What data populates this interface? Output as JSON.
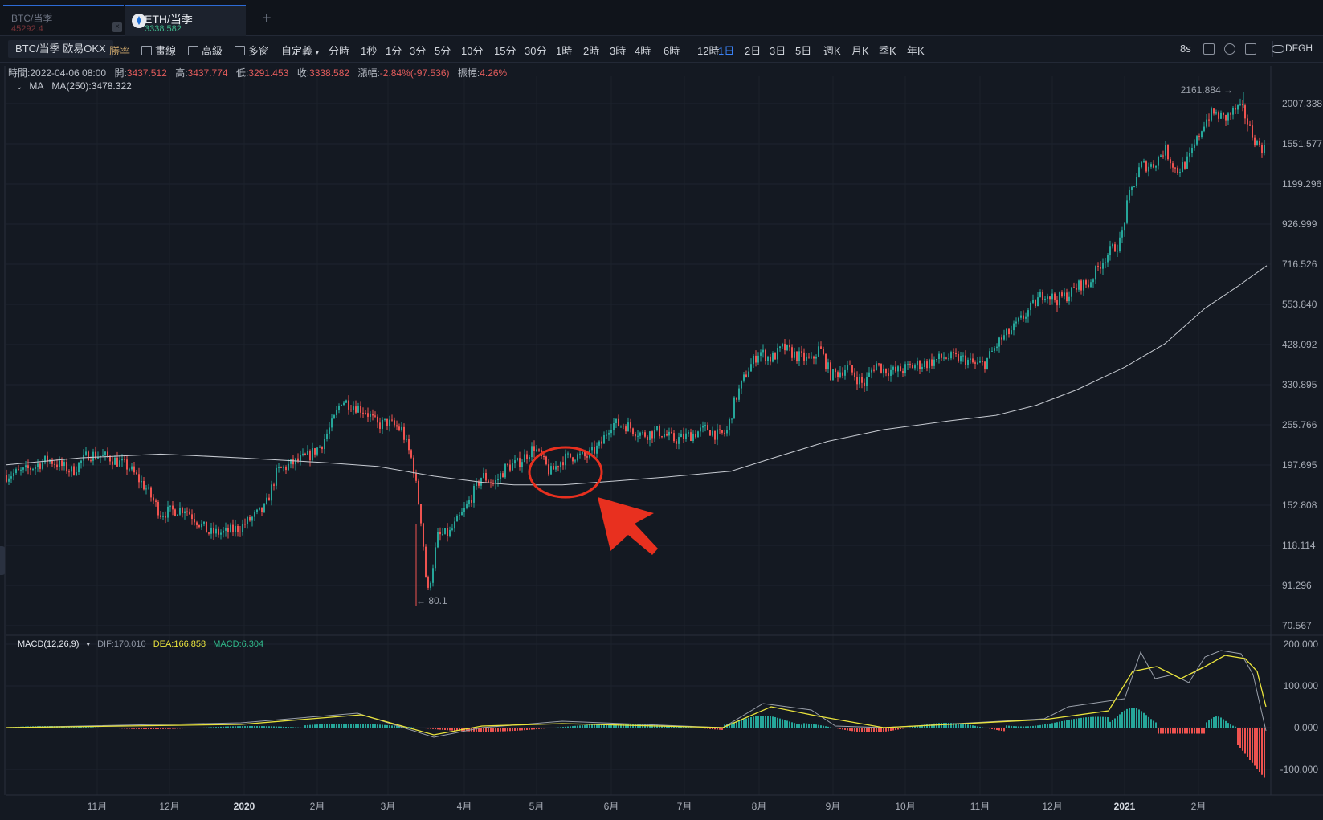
{
  "tabs": [
    {
      "name": "BTC/当季",
      "price": "45292.4"
    },
    {
      "name": "ETH/当季",
      "price": "3338.582"
    }
  ],
  "toolbar": {
    "symbol": "BTC/当季 欧易OKX",
    "win_rate": "勝率",
    "tools": [
      "畫線",
      "高級",
      "多窗",
      "自定義"
    ],
    "timeframes": [
      "分時",
      "1秒",
      "1分",
      "3分",
      "5分",
      "10分",
      "15分",
      "30分",
      "1時",
      "2時",
      "3時",
      "4時",
      "6時",
      "12時",
      "1日",
      "2日",
      "3日",
      "5日",
      "週K",
      "月K",
      "季K",
      "年K"
    ],
    "active_timeframe": "1日",
    "refresh": "8s",
    "account": "DFGH"
  },
  "info": {
    "time_label": "時間:",
    "time": "2022-04-06 08:00",
    "open_label": "開:",
    "open": "3437.512",
    "high_label": "高:",
    "high": "3437.774",
    "low_label": "低:",
    "low": "3291.453",
    "close_label": "收:",
    "close": "3338.582",
    "change_label": "漲幅:",
    "change": "-2.84%(-97.536)",
    "amp_label": "振幅:",
    "amp": "4.26%"
  },
  "ma": {
    "label": "MA",
    "value": "MA(250):3478.322"
  },
  "macd": {
    "label": "MACD(12,26,9)",
    "dif": "DIF:170.010",
    "dea": "DEA:166.858",
    "macd": "MACD:6.304"
  },
  "colors": {
    "up": "#26a69a",
    "down": "#ef5350",
    "ma": "#c7cbd2",
    "dif": "#9aa0aa",
    "dea": "#e9e33c",
    "annotation": "#e8301f",
    "active": "#3b82f6"
  },
  "chart_data": {
    "type": "candlestick",
    "price_axis_labels": [
      "2007.338",
      "1551.577",
      "1199.296",
      "926.999",
      "716.526",
      "553.840",
      "428.092",
      "330.895",
      "255.766",
      "197.695",
      "152.808",
      "118.114",
      "91.296",
      "70.567"
    ],
    "macd_axis_labels": [
      "200.000",
      "100.000",
      "0.000",
      "-100.000"
    ],
    "time_axis_labels": [
      "11月",
      "12月",
      "2020",
      "2月",
      "3月",
      "4月",
      "5月",
      "6月",
      "7月",
      "8月",
      "9月",
      "10月",
      "11月",
      "12月",
      "2021",
      "2月"
    ],
    "bold_time_labels": [
      "2020",
      "2021"
    ],
    "high_marker": "2161.884",
    "low_marker": "80.1",
    "scale": "log"
  }
}
